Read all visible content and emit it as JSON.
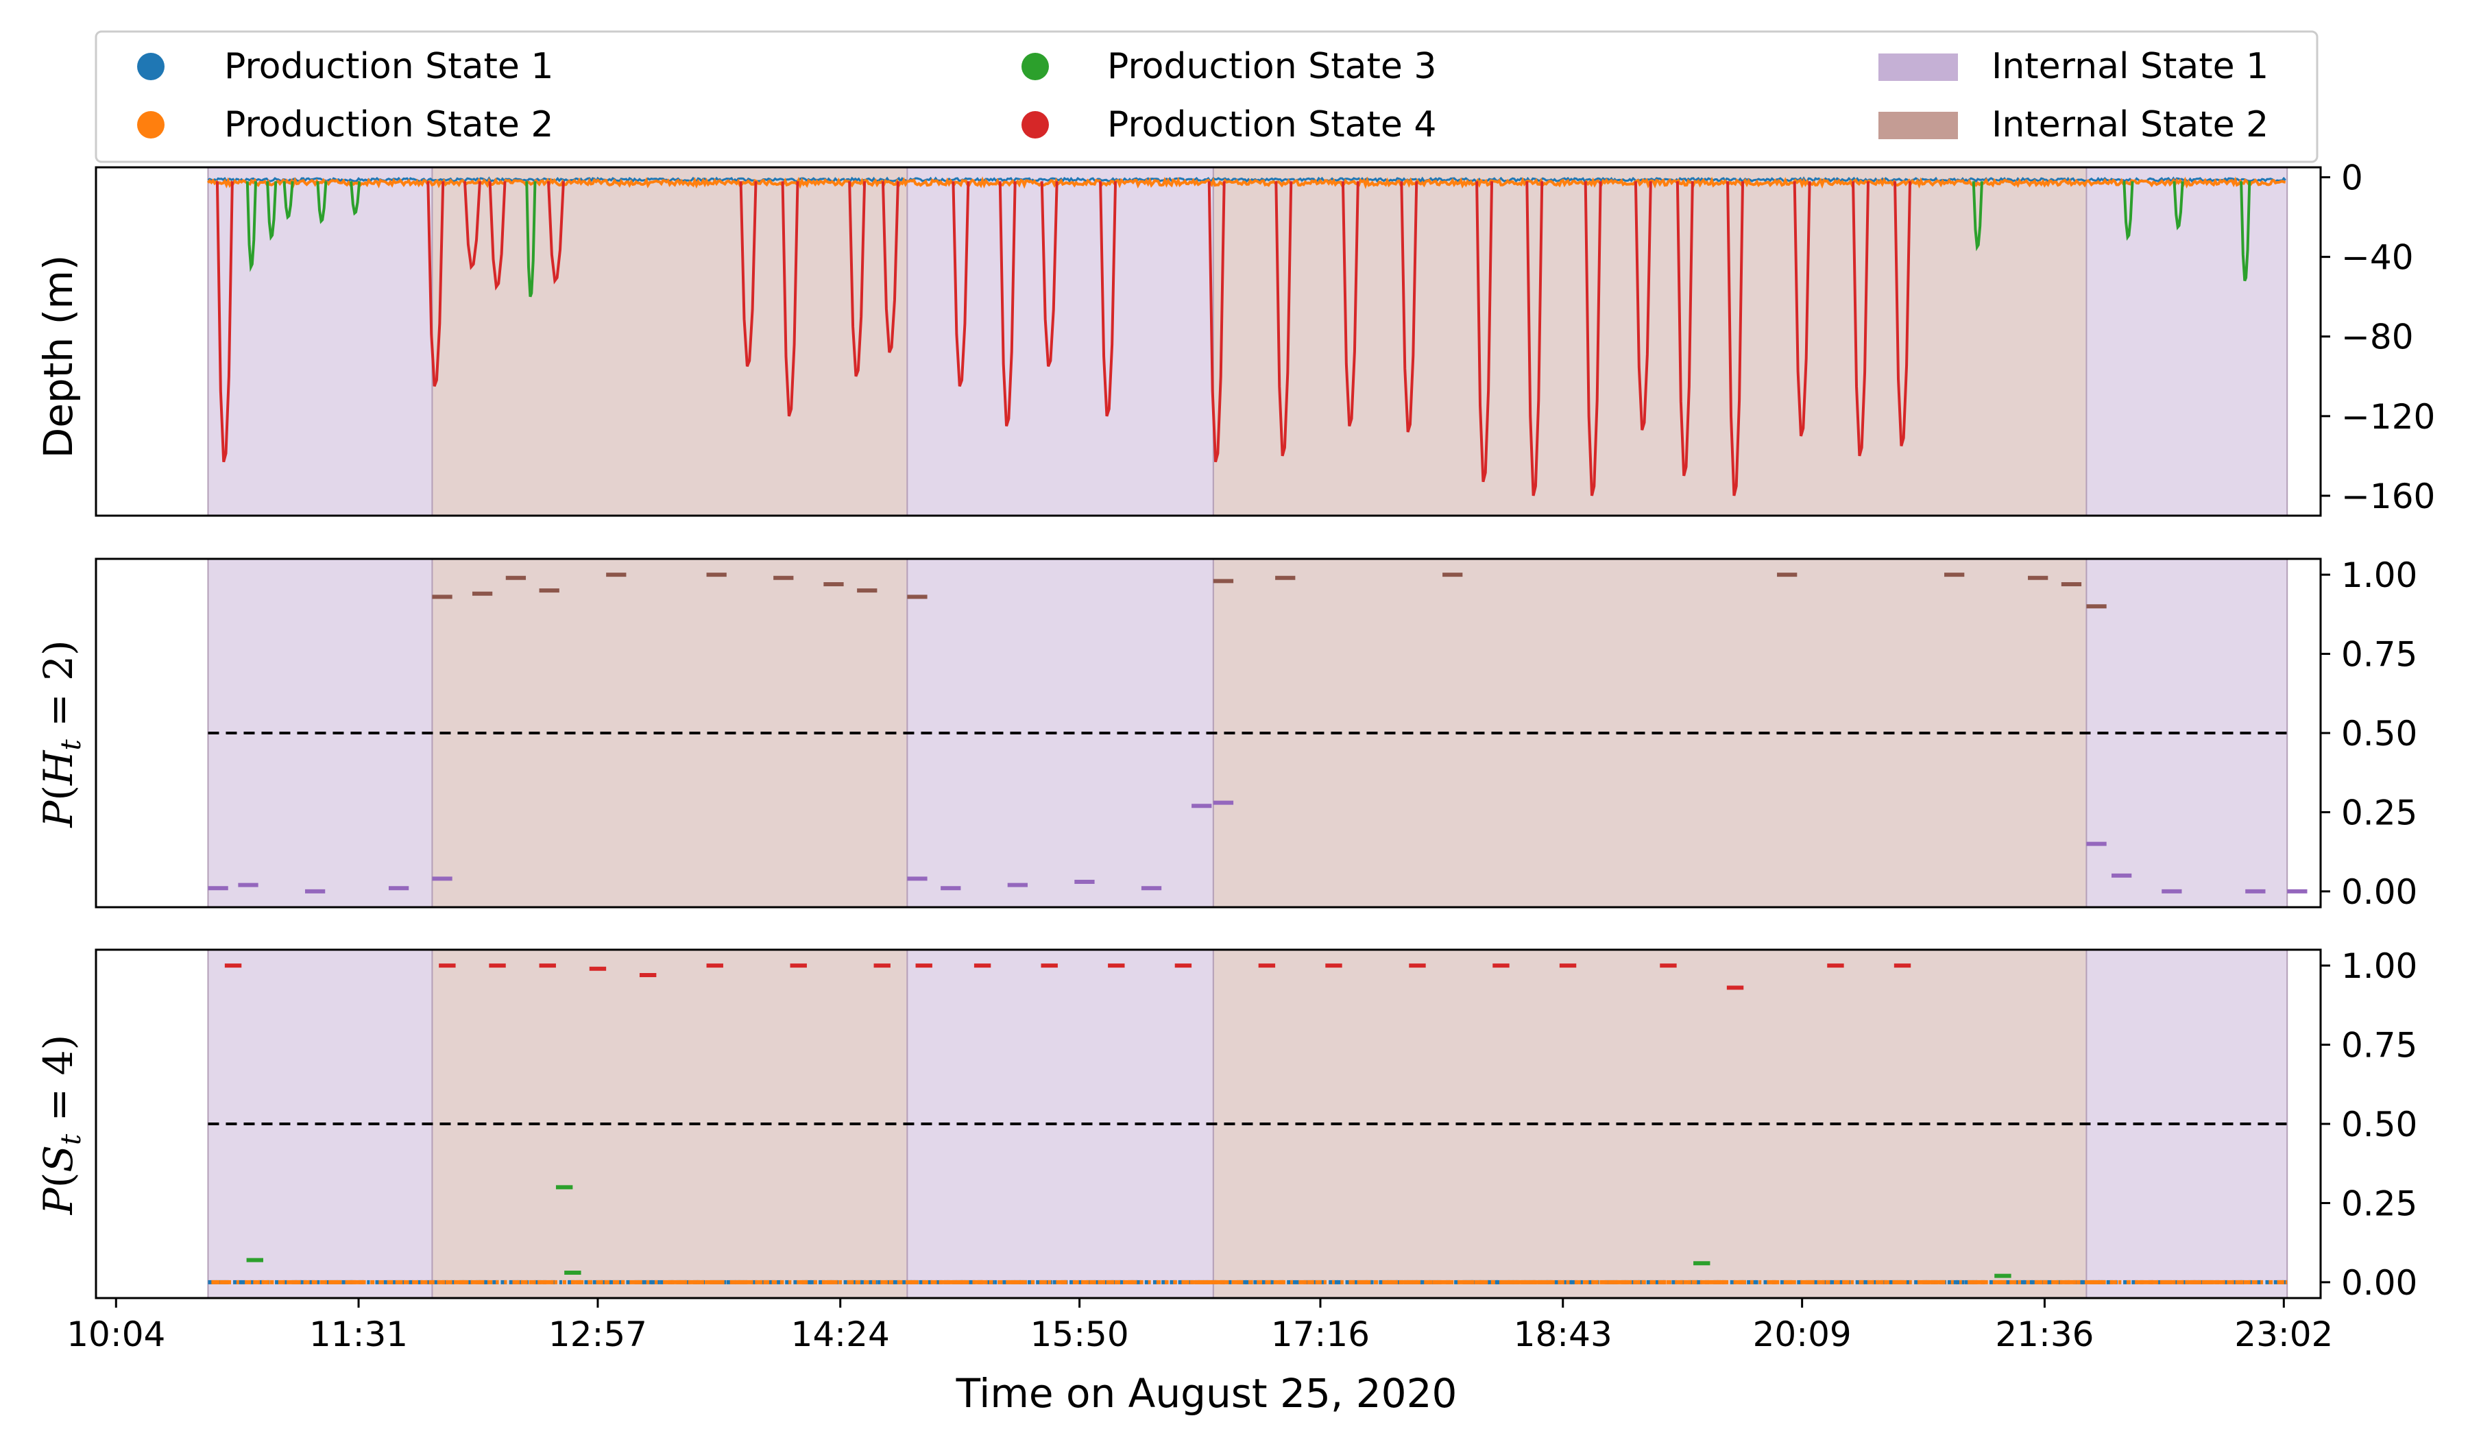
{
  "chart_data": {
    "type": "line",
    "figure": {
      "xlabel": "Time on August 25, 2020",
      "x_tick_labels": [
        "10:04",
        "11:31",
        "12:57",
        "14:24",
        "15:50",
        "17:16",
        "18:43",
        "20:09",
        "21:36",
        "23:02"
      ],
      "x_tick_hours": [
        10.07,
        11.52,
        12.95,
        14.4,
        15.83,
        17.27,
        18.72,
        20.15,
        21.6,
        23.03
      ],
      "xlim_hours": [
        9.95,
        23.25
      ],
      "data_range_hours": [
        10.62,
        23.05
      ]
    },
    "legend": {
      "placement": "top",
      "entries": [
        {
          "label": "Production State 1",
          "marker": "dot",
          "color": "#1f77b4"
        },
        {
          "label": "Production State 2",
          "marker": "dot",
          "color": "#ff7f0e"
        },
        {
          "label": "Production State 3",
          "marker": "dot",
          "color": "#2ca02c"
        },
        {
          "label": "Production State 4",
          "marker": "dot",
          "color": "#d62728"
        },
        {
          "label": "Internal State 1",
          "marker": "patch",
          "color": "#c5b0d5"
        },
        {
          "label": "Internal State 2",
          "marker": "patch",
          "color": "#c49c94"
        }
      ]
    },
    "internal_state_segments": [
      {
        "state": 1,
        "start": 10.62,
        "end": 11.96
      },
      {
        "state": 2,
        "start": 11.96,
        "end": 14.8
      },
      {
        "state": 1,
        "start": 14.8,
        "end": 16.63
      },
      {
        "state": 2,
        "start": 16.63,
        "end": 21.85
      },
      {
        "state": 1,
        "start": 21.85,
        "end": 23.05
      }
    ],
    "panels": [
      {
        "id": "depth",
        "ylabel": "Depth (m)",
        "ylim": [
          -170,
          5
        ],
        "yticks": [
          0,
          -40,
          -80,
          -120,
          -160
        ],
        "ytick_labels": [
          "0",
          "−40",
          "−80",
          "−120",
          "−160"
        ],
        "dive_color_rule": "red = Production State 4, green = Production State 3, near-surface = Production States 1/2",
        "dives": [
          {
            "time": 10.72,
            "depth": -143,
            "state": 4
          },
          {
            "time": 10.88,
            "depth": -45,
            "state": 3
          },
          {
            "time": 11.0,
            "depth": -30,
            "state": 3
          },
          {
            "time": 11.1,
            "depth": -20,
            "state": 3
          },
          {
            "time": 11.3,
            "depth": -22,
            "state": 3
          },
          {
            "time": 11.5,
            "depth": -18,
            "state": 3
          },
          {
            "time": 11.98,
            "depth": -105,
            "state": 4
          },
          {
            "time": 12.2,
            "depth": -45,
            "state": 4
          },
          {
            "time": 12.35,
            "depth": -55,
            "state": 4
          },
          {
            "time": 12.55,
            "depth": -60,
            "state": 3
          },
          {
            "time": 12.7,
            "depth": -52,
            "state": 4
          },
          {
            "time": 13.85,
            "depth": -95,
            "state": 4
          },
          {
            "time": 14.1,
            "depth": -120,
            "state": 4
          },
          {
            "time": 14.5,
            "depth": -100,
            "state": 4
          },
          {
            "time": 14.7,
            "depth": -88,
            "state": 4
          },
          {
            "time": 15.12,
            "depth": -105,
            "state": 4
          },
          {
            "time": 15.4,
            "depth": -125,
            "state": 4
          },
          {
            "time": 15.65,
            "depth": -95,
            "state": 4
          },
          {
            "time": 16.0,
            "depth": -120,
            "state": 4
          },
          {
            "time": 16.65,
            "depth": -143,
            "state": 4
          },
          {
            "time": 17.05,
            "depth": -140,
            "state": 4
          },
          {
            "time": 17.45,
            "depth": -125,
            "state": 4
          },
          {
            "time": 17.8,
            "depth": -128,
            "state": 4
          },
          {
            "time": 18.25,
            "depth": -153,
            "state": 4
          },
          {
            "time": 18.55,
            "depth": -160,
            "state": 4
          },
          {
            "time": 18.9,
            "depth": -160,
            "state": 4
          },
          {
            "time": 19.2,
            "depth": -127,
            "state": 4
          },
          {
            "time": 19.45,
            "depth": -150,
            "state": 4
          },
          {
            "time": 19.75,
            "depth": -160,
            "state": 4
          },
          {
            "time": 20.15,
            "depth": -130,
            "state": 4
          },
          {
            "time": 20.5,
            "depth": -140,
            "state": 4
          },
          {
            "time": 20.75,
            "depth": -135,
            "state": 4
          },
          {
            "time": 21.2,
            "depth": -35,
            "state": 3
          },
          {
            "time": 22.1,
            "depth": -30,
            "state": 3
          },
          {
            "time": 22.4,
            "depth": -25,
            "state": 3
          },
          {
            "time": 22.8,
            "depth": -52,
            "state": 3
          }
        ]
      },
      {
        "id": "p_h",
        "ylabel": "P(H_t = 2)",
        "ylim": [
          -0.05,
          1.05
        ],
        "yticks": [
          0.0,
          0.25,
          0.5,
          0.75,
          1.0
        ],
        "ytick_labels": [
          "0.00",
          "0.25",
          "0.50",
          "0.75",
          "1.00"
        ],
        "threshold": 0.5,
        "series": [
          {
            "color": "#8c564b",
            "points": [
              [
                11.96,
                0.93
              ],
              [
                12.2,
                0.94
              ],
              [
                12.4,
                0.99
              ],
              [
                12.6,
                0.95
              ],
              [
                13.0,
                1.0
              ],
              [
                13.6,
                1.0
              ],
              [
                14.0,
                0.99
              ],
              [
                14.3,
                0.97
              ],
              [
                14.5,
                0.95
              ],
              [
                14.8,
                0.93
              ],
              [
                16.63,
                0.98
              ],
              [
                17.0,
                0.99
              ],
              [
                18.0,
                1.0
              ],
              [
                20.0,
                1.0
              ],
              [
                21.0,
                1.0
              ],
              [
                21.5,
                0.99
              ],
              [
                21.7,
                0.97
              ],
              [
                21.85,
                0.9
              ]
            ]
          },
          {
            "color": "#9467bd",
            "points": [
              [
                10.62,
                0.01
              ],
              [
                10.8,
                0.02
              ],
              [
                11.2,
                0.0
              ],
              [
                11.7,
                0.01
              ],
              [
                11.96,
                0.04
              ],
              [
                14.8,
                0.04
              ],
              [
                15.0,
                0.01
              ],
              [
                15.4,
                0.02
              ],
              [
                15.8,
                0.03
              ],
              [
                16.2,
                0.01
              ],
              [
                16.5,
                0.27
              ],
              [
                16.63,
                0.28
              ],
              [
                21.85,
                0.15
              ],
              [
                22.0,
                0.05
              ],
              [
                22.3,
                0.0
              ],
              [
                22.8,
                0.0
              ],
              [
                23.05,
                0.0
              ]
            ]
          }
        ]
      },
      {
        "id": "p_s",
        "ylabel": "P(S_t = 4)",
        "ylim": [
          -0.05,
          1.05
        ],
        "yticks": [
          0.0,
          0.25,
          0.5,
          0.75,
          1.0
        ],
        "ytick_labels": [
          "0.00",
          "0.25",
          "0.50",
          "0.75",
          "1.00"
        ],
        "threshold": 0.5,
        "series": [
          {
            "color": "#d62728",
            "name": "Production State 4",
            "points": [
              [
                10.72,
                1.0
              ],
              [
                12.0,
                1.0
              ],
              [
                12.3,
                1.0
              ],
              [
                12.6,
                1.0
              ],
              [
                12.9,
                0.99
              ],
              [
                13.2,
                0.97
              ],
              [
                13.6,
                1.0
              ],
              [
                14.1,
                1.0
              ],
              [
                14.6,
                1.0
              ],
              [
                14.85,
                1.0
              ],
              [
                15.2,
                1.0
              ],
              [
                15.6,
                1.0
              ],
              [
                16.0,
                1.0
              ],
              [
                16.4,
                1.0
              ],
              [
                16.9,
                1.0
              ],
              [
                17.3,
                1.0
              ],
              [
                17.8,
                1.0
              ],
              [
                18.3,
                1.0
              ],
              [
                18.7,
                1.0
              ],
              [
                19.3,
                1.0
              ],
              [
                19.7,
                0.93
              ],
              [
                20.3,
                1.0
              ],
              [
                20.7,
                1.0
              ]
            ]
          },
          {
            "color": "#2ca02c",
            "name": "Production State 3",
            "points": [
              [
                10.85,
                0.07
              ],
              [
                12.7,
                0.3
              ],
              [
                12.75,
                0.03
              ],
              [
                19.5,
                0.06
              ],
              [
                21.3,
                0.02
              ]
            ]
          }
        ],
        "baseline_series": [
          {
            "color": "#1f77b4",
            "name": "Production State 1",
            "value": 0.0
          },
          {
            "color": "#ff7f0e",
            "name": "Production State 2",
            "value": 0.0
          }
        ]
      }
    ]
  }
}
